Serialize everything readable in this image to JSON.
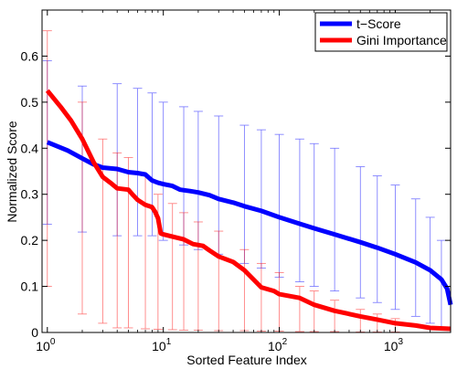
{
  "chart_data": {
    "type": "line",
    "title": "",
    "xlabel": "Sorted Feature Index",
    "ylabel": "Normalized Score",
    "x_scale": "log",
    "xlim": [
      0.9,
      3000
    ],
    "ylim": [
      0,
      0.7
    ],
    "x_ticks": [
      {
        "value": 1,
        "base": "10",
        "exp": "0"
      },
      {
        "value": 10,
        "base": "10",
        "exp": "1"
      },
      {
        "value": 100,
        "base": "10",
        "exp": "2"
      },
      {
        "value": 1000,
        "base": "10",
        "exp": "3"
      }
    ],
    "y_ticks": [
      {
        "value": 0,
        "label": "0"
      },
      {
        "value": 0.1,
        "label": "0.1"
      },
      {
        "value": 0.2,
        "label": "0.2"
      },
      {
        "value": 0.3,
        "label": "0.3"
      },
      {
        "value": 0.4,
        "label": "0.4"
      },
      {
        "value": 0.5,
        "label": "0.5"
      },
      {
        "value": 0.6,
        "label": "0.6"
      }
    ],
    "grid": false,
    "legend_position": "top-right",
    "series": [
      {
        "name": "t−Score",
        "color": "#0000ff",
        "points": [
          [
            1,
            0.413
          ],
          [
            1.5,
            0.395
          ],
          [
            2,
            0.378
          ],
          [
            2.5,
            0.365
          ],
          [
            3,
            0.358
          ],
          [
            4,
            0.355
          ],
          [
            5,
            0.348
          ],
          [
            6,
            0.346
          ],
          [
            7,
            0.343
          ],
          [
            8,
            0.33
          ],
          [
            9,
            0.325
          ],
          [
            10,
            0.322
          ],
          [
            12,
            0.318
          ],
          [
            14,
            0.31
          ],
          [
            17,
            0.307
          ],
          [
            20,
            0.304
          ],
          [
            25,
            0.298
          ],
          [
            30,
            0.29
          ],
          [
            40,
            0.282
          ],
          [
            50,
            0.274
          ],
          [
            70,
            0.264
          ],
          [
            100,
            0.25
          ],
          [
            150,
            0.236
          ],
          [
            200,
            0.226
          ],
          [
            300,
            0.213
          ],
          [
            500,
            0.196
          ],
          [
            700,
            0.184
          ],
          [
            1000,
            0.17
          ],
          [
            1500,
            0.152
          ],
          [
            2000,
            0.135
          ],
          [
            2500,
            0.115
          ],
          [
            2800,
            0.095
          ],
          [
            3000,
            0.06
          ]
        ],
        "errorbars": [
          [
            1,
            0.235,
            0.59
          ],
          [
            2,
            0.218,
            0.535
          ],
          [
            4,
            0.21,
            0.54
          ],
          [
            6,
            0.21,
            0.53
          ],
          [
            8,
            0.21,
            0.52
          ],
          [
            10,
            0.2,
            0.5
          ],
          [
            15,
            0.19,
            0.49
          ],
          [
            20,
            0.18,
            0.48
          ],
          [
            30,
            0.17,
            0.47
          ],
          [
            50,
            0.15,
            0.45
          ],
          [
            70,
            0.14,
            0.44
          ],
          [
            100,
            0.12,
            0.43
          ],
          [
            150,
            0.11,
            0.42
          ],
          [
            200,
            0.1,
            0.41
          ],
          [
            300,
            0.09,
            0.4
          ],
          [
            500,
            0.075,
            0.36
          ],
          [
            700,
            0.065,
            0.34
          ],
          [
            1000,
            0.05,
            0.32
          ],
          [
            1500,
            0.035,
            0.29
          ],
          [
            2000,
            0.02,
            0.25
          ],
          [
            2500,
            0.01,
            0.2
          ]
        ]
      },
      {
        "name": "Gini Importance",
        "color": "#ff0000",
        "points": [
          [
            1,
            0.525
          ],
          [
            1.3,
            0.49
          ],
          [
            1.6,
            0.46
          ],
          [
            2,
            0.42
          ],
          [
            2.5,
            0.37
          ],
          [
            3,
            0.338
          ],
          [
            3.5,
            0.325
          ],
          [
            4,
            0.313
          ],
          [
            5,
            0.31
          ],
          [
            5.5,
            0.298
          ],
          [
            6,
            0.288
          ],
          [
            7,
            0.277
          ],
          [
            8,
            0.272
          ],
          [
            8.5,
            0.262
          ],
          [
            9,
            0.248
          ],
          [
            9.5,
            0.215
          ],
          [
            10,
            0.213
          ],
          [
            12,
            0.208
          ],
          [
            15,
            0.202
          ],
          [
            18,
            0.192
          ],
          [
            22,
            0.188
          ],
          [
            25,
            0.178
          ],
          [
            30,
            0.165
          ],
          [
            40,
            0.153
          ],
          [
            50,
            0.135
          ],
          [
            60,
            0.115
          ],
          [
            70,
            0.098
          ],
          [
            90,
            0.09
          ],
          [
            100,
            0.083
          ],
          [
            150,
            0.075
          ],
          [
            200,
            0.06
          ],
          [
            300,
            0.047
          ],
          [
            500,
            0.035
          ],
          [
            700,
            0.028
          ],
          [
            1000,
            0.02
          ],
          [
            1500,
            0.015
          ],
          [
            2000,
            0.01
          ],
          [
            3000,
            0.008
          ]
        ],
        "errorbars": [
          [
            1,
            0.1,
            0.655
          ],
          [
            2,
            0.04,
            0.5
          ],
          [
            3,
            0.02,
            0.42
          ],
          [
            4,
            0.01,
            0.39
          ],
          [
            5,
            0.01,
            0.38
          ],
          [
            7,
            0.008,
            0.34
          ],
          [
            9,
            0.007,
            0.3
          ],
          [
            12,
            0.006,
            0.28
          ],
          [
            15,
            0.005,
            0.26
          ],
          [
            20,
            0.005,
            0.24
          ],
          [
            30,
            0.004,
            0.22
          ],
          [
            50,
            0.004,
            0.18
          ],
          [
            70,
            0.003,
            0.15
          ],
          [
            100,
            0.003,
            0.13
          ],
          [
            150,
            0.002,
            0.1
          ],
          [
            200,
            0.002,
            0.09
          ],
          [
            300,
            0.002,
            0.07
          ],
          [
            500,
            0.001,
            0.05
          ],
          [
            700,
            0.001,
            0.04
          ],
          [
            1000,
            0.001,
            0.03
          ]
        ]
      }
    ]
  }
}
